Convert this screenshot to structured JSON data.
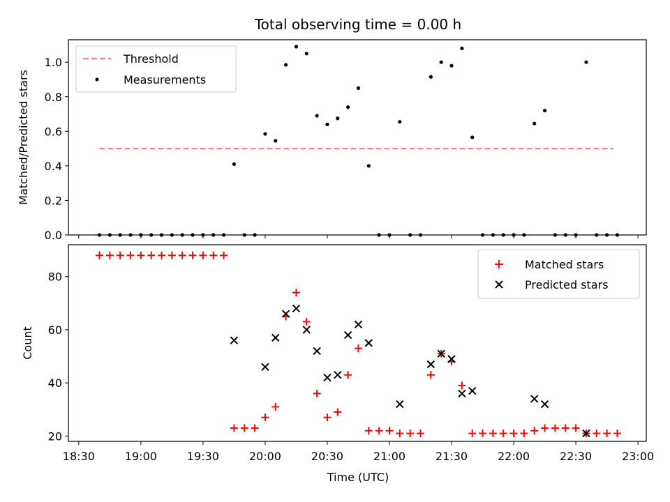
{
  "title": "Total observing time = 0.00 h",
  "colors": {
    "threshold": "#ff8080",
    "measurement": "#000000",
    "matched": "#ff0000",
    "predicted": "#000000"
  },
  "chart_data": [
    {
      "type": "scatter",
      "ylabel": "Matched/Predicted stars",
      "xlim": [
        "18:25",
        "23:04"
      ],
      "ylim": [
        0,
        1.13
      ],
      "yticks": [
        "0.0",
        "0.2",
        "0.4",
        "0.6",
        "0.8",
        "1.0"
      ],
      "legend_position": "top-left",
      "legend": {
        "threshold_label": "Threshold",
        "measurements_label": "Measurements"
      },
      "threshold": {
        "value": 0.5,
        "x_start": "18:40",
        "x_end": "22:48"
      },
      "measurements": {
        "x": [
          "18:40",
          "18:45",
          "18:50",
          "18:55",
          "19:00",
          "19:05",
          "19:10",
          "19:15",
          "19:20",
          "19:25",
          "19:30",
          "19:35",
          "19:40",
          "19:45",
          "19:50",
          "19:55",
          "20:00",
          "20:05",
          "20:10",
          "20:15",
          "20:20",
          "20:25",
          "20:30",
          "20:35",
          "20:40",
          "20:45",
          "20:50",
          "20:55",
          "21:00",
          "21:05",
          "21:10",
          "21:15",
          "21:20",
          "21:25",
          "21:30",
          "21:35",
          "21:40",
          "21:45",
          "21:50",
          "21:55",
          "22:00",
          "22:05",
          "22:10",
          "22:15",
          "22:20",
          "22:25",
          "22:30",
          "22:35",
          "22:40",
          "22:45",
          "22:50"
        ],
        "y": [
          0,
          0,
          0,
          0,
          0,
          0,
          0,
          0,
          0,
          0,
          0,
          0,
          0,
          0.41,
          0,
          0,
          0.585,
          0.545,
          0.985,
          1.09,
          1.05,
          0.69,
          0.64,
          0.675,
          0.74,
          0.85,
          0.4,
          0,
          0,
          0.655,
          0,
          0,
          0.915,
          1.0,
          0.98,
          1.08,
          0.565,
          0,
          0,
          0,
          0,
          0,
          0.645,
          0.72,
          0,
          0,
          0,
          1.0,
          0,
          0,
          0
        ]
      }
    },
    {
      "type": "scatter",
      "xlabel": "Time (UTC)",
      "ylabel": "Count",
      "xlim": [
        "18:25",
        "23:04"
      ],
      "ylim": [
        18,
        92
      ],
      "xticks": [
        "18:30",
        "19:00",
        "19:30",
        "20:00",
        "20:30",
        "21:00",
        "21:30",
        "22:00",
        "22:30",
        "23:00"
      ],
      "yticks": [
        "20",
        "40",
        "60",
        "80"
      ],
      "legend_position": "top-right",
      "series": [
        {
          "name": "Matched stars",
          "marker": "plus",
          "x": [
            "18:40",
            "18:45",
            "18:50",
            "18:55",
            "19:00",
            "19:05",
            "19:10",
            "19:15",
            "19:20",
            "19:25",
            "19:30",
            "19:35",
            "19:40",
            "19:45",
            "19:50",
            "19:55",
            "20:00",
            "20:05",
            "20:10",
            "20:15",
            "20:20",
            "20:25",
            "20:30",
            "20:35",
            "20:40",
            "20:45",
            "20:50",
            "20:55",
            "21:00",
            "21:05",
            "21:10",
            "21:15",
            "21:20",
            "21:25",
            "21:30",
            "21:35",
            "21:40",
            "21:45",
            "21:50",
            "21:55",
            "22:00",
            "22:05",
            "22:10",
            "22:15",
            "22:20",
            "22:25",
            "22:30",
            "22:35",
            "22:40",
            "22:45",
            "22:50"
          ],
          "y": [
            88,
            88,
            88,
            88,
            88,
            88,
            88,
            88,
            88,
            88,
            88,
            88,
            88,
            23,
            23,
            23,
            27,
            31,
            65,
            74,
            63,
            36,
            27,
            29,
            43,
            53,
            22,
            22,
            22,
            21,
            21,
            21,
            43,
            51,
            48,
            39,
            21,
            21,
            21,
            21,
            21,
            21,
            22,
            23,
            23,
            23,
            23,
            21,
            21,
            21,
            21
          ]
        },
        {
          "name": "Predicted stars",
          "marker": "x",
          "x": [
            "19:45",
            "20:00",
            "20:05",
            "20:10",
            "20:15",
            "20:20",
            "20:25",
            "20:30",
            "20:35",
            "20:40",
            "20:45",
            "20:50",
            "21:05",
            "21:20",
            "21:25",
            "21:30",
            "21:35",
            "21:40",
            "22:10",
            "22:15",
            "22:35"
          ],
          "y": [
            56,
            46,
            57,
            66,
            68,
            60,
            52,
            42,
            43,
            58,
            62,
            55,
            32,
            47,
            51,
            49,
            36,
            37,
            34,
            32,
            21
          ]
        }
      ]
    }
  ]
}
